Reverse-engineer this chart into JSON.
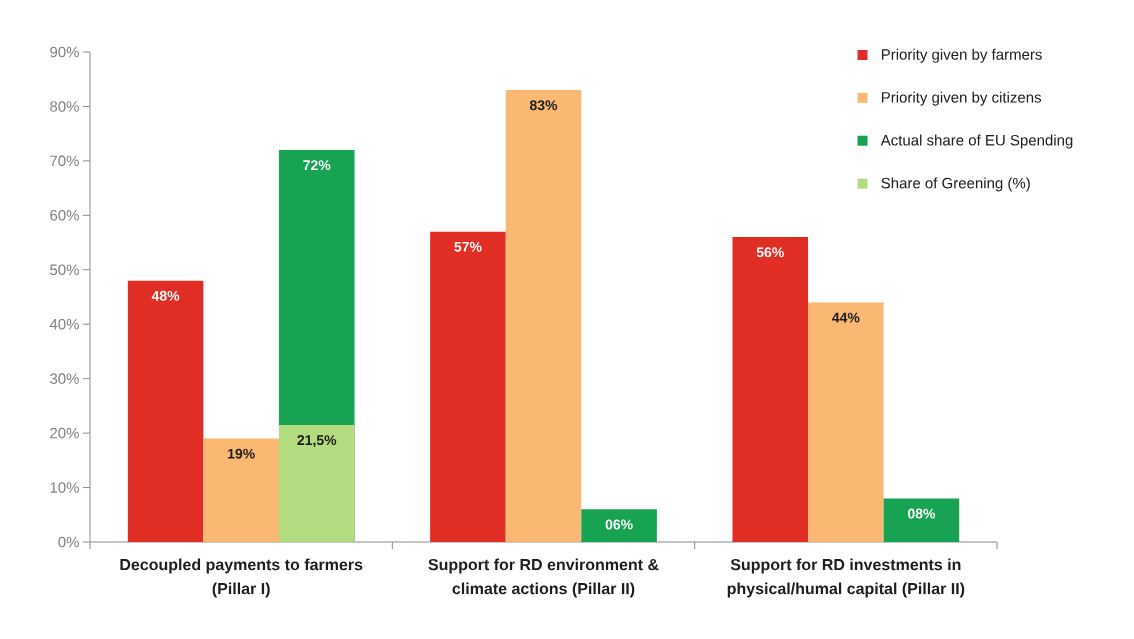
{
  "chart_data": {
    "type": "bar",
    "categories": [
      "Decoupled payments to farmers (Pillar I)",
      "Support for RD environment & climate actions (Pillar II)",
      "Support for RD investments in physical/humal capital (Pillar II)"
    ],
    "series": [
      {
        "name": "Priority given by farmers",
        "color": "#e02e24",
        "values": [
          48,
          57,
          56
        ],
        "value_labels": [
          "48%",
          "57%",
          "56%"
        ]
      },
      {
        "name": "Priority given by citizens",
        "color": "#fbb872",
        "values": [
          19,
          83,
          44
        ],
        "value_labels": [
          "19%",
          "83%",
          "44%"
        ]
      },
      {
        "name": "Actual share of EU Spending",
        "color": "#17a352",
        "values": [
          72,
          6,
          8
        ],
        "value_labels": [
          "72%",
          "06%",
          "08%"
        ]
      },
      {
        "name": "Share of Greening (%)",
        "color": "#b3dc80",
        "values": [
          21.5,
          null,
          null
        ],
        "value_labels": [
          "21,5%",
          null,
          null
        ]
      }
    ],
    "ylim": [
      0,
      90
    ],
    "yticks": [
      {
        "value": 0,
        "label": "0%"
      },
      {
        "value": 10,
        "label": "10%"
      },
      {
        "value": 20,
        "label": "20%"
      },
      {
        "value": 30,
        "label": "30%"
      },
      {
        "value": 40,
        "label": "40%"
      },
      {
        "value": 50,
        "label": "50%"
      },
      {
        "value": 60,
        "label": "60%"
      },
      {
        "value": 70,
        "label": "70%"
      },
      {
        "value": 80,
        "label": "80%"
      },
      {
        "value": 90,
        "label": "90%"
      }
    ],
    "legend": "top right"
  }
}
